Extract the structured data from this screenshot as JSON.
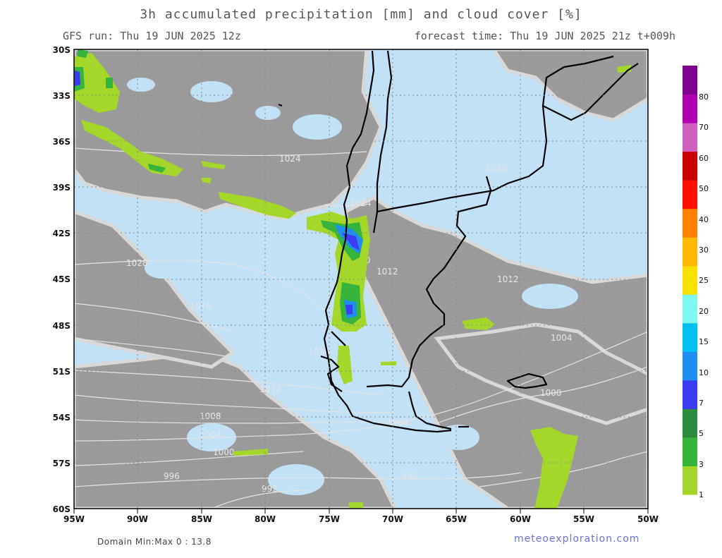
{
  "header": {
    "title": "3h accumulated precipitation [mm] and cloud cover [%]",
    "run": "GFS run: Thu 19 JUN 2025 12z",
    "forecast": "forecast time: Thu 19 JUN 2025 21z  t+009h"
  },
  "axes": {
    "lat_labels": [
      "30S",
      "33S",
      "36S",
      "39S",
      "42S",
      "45S",
      "48S",
      "51S",
      "54S",
      "57S",
      "60S"
    ],
    "lon_labels": [
      "95W",
      "90W",
      "85W",
      "80W",
      "75W",
      "70W",
      "65W",
      "60W",
      "55W",
      "50W"
    ]
  },
  "isobars": [
    {
      "label": "1024"
    },
    {
      "label": "1024"
    },
    {
      "label": "1020"
    },
    {
      "label": "1012"
    },
    {
      "label": "1028"
    },
    {
      "label": "1020"
    },
    {
      "label": "1012"
    },
    {
      "label": "1016"
    },
    {
      "label": "1016"
    },
    {
      "label": "1012"
    },
    {
      "label": "1008"
    },
    {
      "label": "1004"
    },
    {
      "label": "1000"
    },
    {
      "label": "996"
    },
    {
      "label": "992"
    },
    {
      "label": "1004"
    },
    {
      "label": "1004"
    },
    {
      "label": "1000"
    },
    {
      "label": "996"
    }
  ],
  "legend": {
    "levels": [
      "1",
      "3",
      "5",
      "7",
      "10",
      "15",
      "20",
      "25",
      "30",
      "40",
      "50",
      "60",
      "70",
      "80"
    ],
    "colors": [
      "#a5d62a",
      "#37b43c",
      "#2a8c3c",
      "#3b3cf4",
      "#1e8ff0",
      "#00c0f0",
      "#80f8f0",
      "#f8e000",
      "#ffba00",
      "#ff8000",
      "#ff1000",
      "#c80000",
      "#d060c0",
      "#b000b0",
      "#800090"
    ]
  },
  "footer": {
    "domain": "Domain Min:Max 0 : 13.8",
    "site": "meteoexploration.com"
  },
  "colors": {
    "ocean_clear": "#c2e1f5",
    "cloud": "#9b9b9b",
    "cloud_edge": "#d4d4d4",
    "coast": "#000000",
    "isobar": "#e0e0e0"
  }
}
